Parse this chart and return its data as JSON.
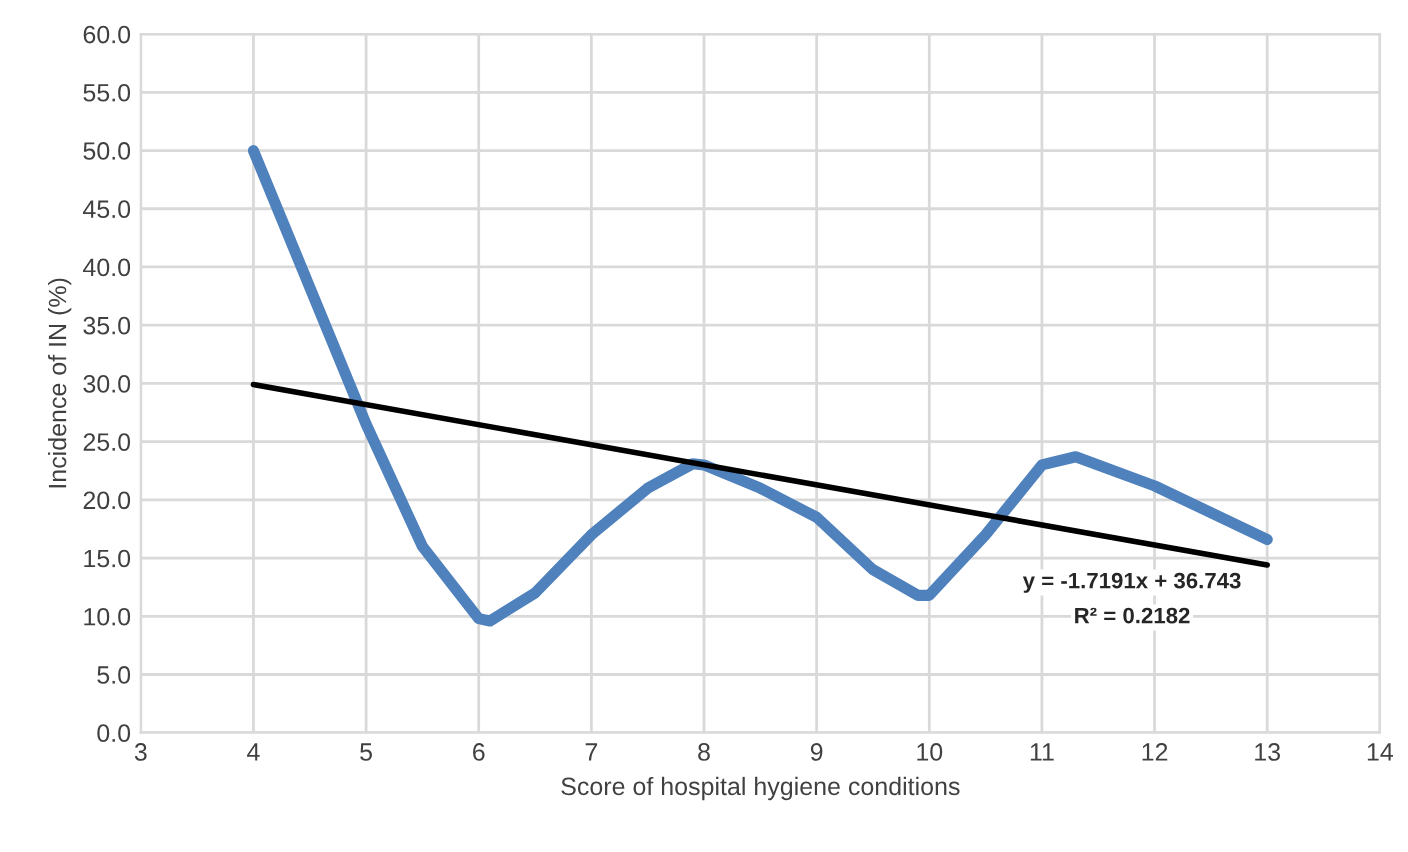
{
  "chart_data": {
    "type": "line",
    "xlabel": "Score of hospital hygiene conditions",
    "ylabel": "Incidence of IN (%)",
    "series": [
      {
        "type": "line",
        "color": "#4f81bd",
        "x": [
          4,
          5,
          5.5,
          6,
          6.1,
          6.5,
          7,
          7.5,
          7.9,
          8,
          8.5,
          9,
          9.5,
          9.9,
          10,
          10.5,
          11,
          11.3,
          12,
          13
        ],
        "values": [
          50,
          26.5,
          16,
          9.8,
          9.6,
          12,
          17,
          21,
          23.1,
          23,
          21,
          18.5,
          14,
          11.8,
          11.8,
          17,
          23,
          23.7,
          21.2,
          16.6
        ]
      },
      {
        "type": "line",
        "color": "#000000",
        "x": [
          4,
          13
        ],
        "values": [
          29.9,
          14.4
        ]
      }
    ],
    "annotations": [
      "y = -1.7191x + 36.743",
      "R² = 0.2182"
    ],
    "xlim": [
      3,
      14
    ],
    "xticks": [
      3,
      4,
      5,
      6,
      7,
      8,
      9,
      10,
      11,
      12,
      13,
      14
    ],
    "ylim": [
      0,
      60
    ],
    "yticks": [
      {
        "value": 0,
        "label": "0.0"
      },
      {
        "value": 5,
        "label": "5.0"
      },
      {
        "value": 10,
        "label": "10.0"
      },
      {
        "value": 15,
        "label": "15.0"
      },
      {
        "value": 20,
        "label": "20.0"
      },
      {
        "value": 25,
        "label": "25.0"
      },
      {
        "value": 30,
        "label": "30.0"
      },
      {
        "value": 35,
        "label": "35.0"
      },
      {
        "value": 40,
        "label": "40.0"
      },
      {
        "value": 45,
        "label": "45.0"
      },
      {
        "value": 50,
        "label": "50.0"
      },
      {
        "value": 55,
        "label": "55.0"
      },
      {
        "value": 60,
        "label": "60.0"
      }
    ],
    "grid": true,
    "legend": false
  }
}
